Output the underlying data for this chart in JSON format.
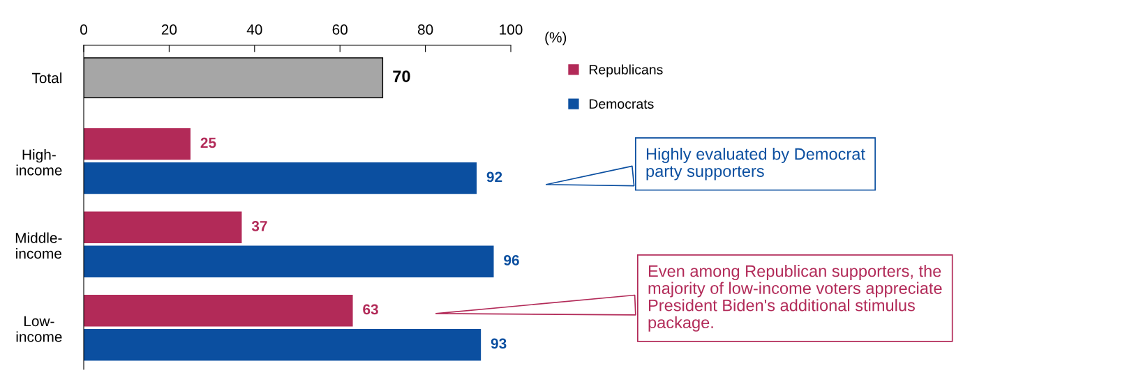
{
  "chart_data": {
    "type": "bar",
    "orientation": "horizontal",
    "categories": [
      "Total",
      "High-\nincome",
      "Middle-\nincome",
      "Low-\nincome"
    ],
    "series": [
      {
        "color": "#a6a6a6",
        "values": [
          70,
          null,
          null,
          null
        ]
      },
      {
        "name": "Republicans",
        "color": "#b22a58",
        "values": [
          null,
          25,
          37,
          63
        ]
      },
      {
        "name": "Democrats",
        "color": "#0b4fa0",
        "values": [
          null,
          92,
          96,
          93
        ]
      }
    ],
    "xlim": [
      0,
      100
    ],
    "xticks": [
      0,
      20,
      40,
      60,
      80,
      100
    ],
    "xlabel": "(%)",
    "data_labels": true,
    "grid": false,
    "legend": "right",
    "annotations": [
      "Highly evaluated by Democrat\nparty supporters",
      "Even among Republican supporters, the\nmajority of low-income voters appreciate\nPresident Biden's additional stimulus\npackage."
    ]
  }
}
